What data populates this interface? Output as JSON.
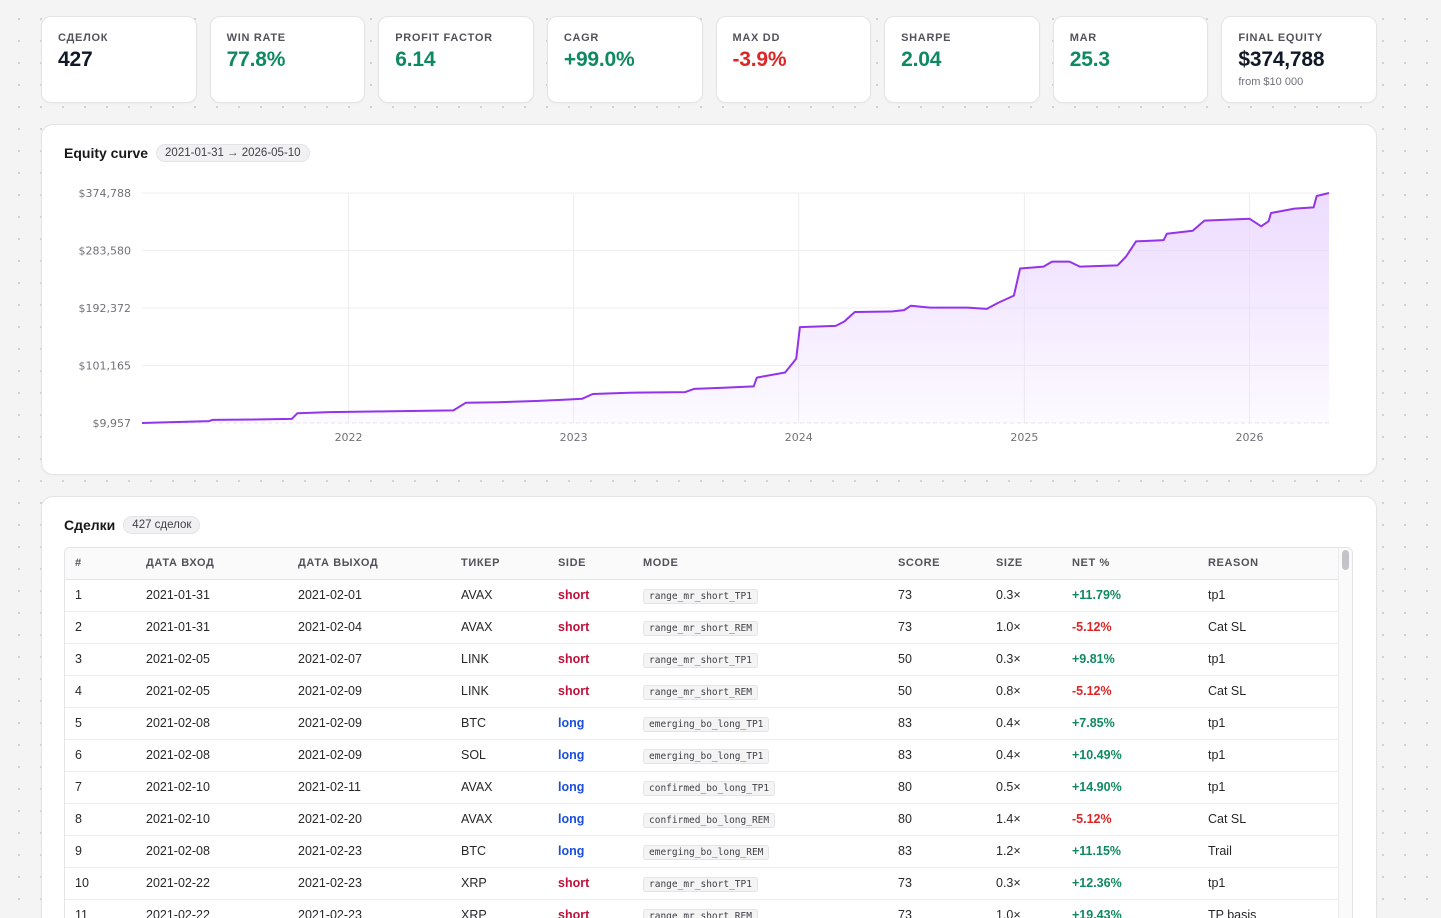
{
  "stats": [
    {
      "label": "СДЕЛОК",
      "value": "427",
      "tone": "dark",
      "sub": ""
    },
    {
      "label": "WIN RATE",
      "value": "77.8%",
      "tone": "green",
      "sub": ""
    },
    {
      "label": "PROFIT FACTOR",
      "value": "6.14",
      "tone": "green",
      "sub": ""
    },
    {
      "label": "CAGR",
      "value": "+99.0%",
      "tone": "green",
      "sub": ""
    },
    {
      "label": "MAX DD",
      "value": "-3.9%",
      "tone": "red",
      "sub": ""
    },
    {
      "label": "SHARPE",
      "value": "2.04",
      "tone": "green",
      "sub": ""
    },
    {
      "label": "MAR",
      "value": "25.3",
      "tone": "green",
      "sub": ""
    },
    {
      "label": "FINAL EQUITY",
      "value": "$374,788",
      "tone": "dark",
      "sub": "from $10 000"
    }
  ],
  "equity": {
    "title": "Equity curve",
    "range_badge": "2021-01-31 → 2026-05-10"
  },
  "chart_data": {
    "type": "area",
    "title": "Equity curve",
    "x_start": "2021-01-31",
    "x_end": "2026-05-10",
    "x_ticks": [
      "2022",
      "2023",
      "2024",
      "2025",
      "2026"
    ],
    "y_ticks": [
      "$9,957",
      "$101,165",
      "$192,372",
      "$283,580",
      "$374,788"
    ],
    "ylim": [
      9957,
      374788
    ],
    "grid": true,
    "color": "#9333ea",
    "fill": "#e9d5ff",
    "series": [
      {
        "points": [
          [
            "2021-01-31",
            9957
          ],
          [
            "2021-03-15",
            11200
          ],
          [
            "2021-05-20",
            13000
          ],
          [
            "2021-05-25",
            14800
          ],
          [
            "2021-08-01",
            15500
          ],
          [
            "2021-10-01",
            16500
          ],
          [
            "2021-10-10",
            25500
          ],
          [
            "2021-12-01",
            27200
          ],
          [
            "2022-03-01",
            28400
          ],
          [
            "2022-06-20",
            30000
          ],
          [
            "2022-07-10",
            42000
          ],
          [
            "2022-09-01",
            43000
          ],
          [
            "2022-11-01",
            44800
          ],
          [
            "2022-12-20",
            47000
          ],
          [
            "2023-01-15",
            48500
          ],
          [
            "2023-02-01",
            56000
          ],
          [
            "2023-04-01",
            58000
          ],
          [
            "2023-07-01",
            59000
          ],
          [
            "2023-07-15",
            64000
          ],
          [
            "2023-09-01",
            66000
          ],
          [
            "2023-10-20",
            68000
          ],
          [
            "2023-10-25",
            82000
          ],
          [
            "2023-12-10",
            90000
          ],
          [
            "2023-12-28",
            112000
          ],
          [
            "2024-01-03",
            162000
          ],
          [
            "2024-03-01",
            164000
          ],
          [
            "2024-03-15",
            171000
          ],
          [
            "2024-04-01",
            186000
          ],
          [
            "2024-06-01",
            187000
          ],
          [
            "2024-06-20",
            189000
          ],
          [
            "2024-07-01",
            196000
          ],
          [
            "2024-08-01",
            193000
          ],
          [
            "2024-10-01",
            193000
          ],
          [
            "2024-11-01",
            191000
          ],
          [
            "2024-11-20",
            201000
          ],
          [
            "2024-12-15",
            212000
          ],
          [
            "2024-12-25",
            255000
          ],
          [
            "2025-02-01",
            258000
          ],
          [
            "2025-02-15",
            266000
          ],
          [
            "2025-03-15",
            266000
          ],
          [
            "2025-04-01",
            258000
          ],
          [
            "2025-06-01",
            260000
          ],
          [
            "2025-06-15",
            274000
          ],
          [
            "2025-07-01",
            298000
          ],
          [
            "2025-08-15",
            300000
          ],
          [
            "2025-08-20",
            310000
          ],
          [
            "2025-10-01",
            315000
          ],
          [
            "2025-10-20",
            331000
          ],
          [
            "2026-01-01",
            334000
          ],
          [
            "2026-01-20",
            322000
          ],
          [
            "2026-02-01",
            330000
          ],
          [
            "2026-02-05",
            343000
          ],
          [
            "2026-03-15",
            350000
          ],
          [
            "2026-04-15",
            352000
          ],
          [
            "2026-04-20",
            370000
          ],
          [
            "2026-05-10",
            374788
          ]
        ]
      }
    ]
  },
  "trades": {
    "title": "Сделки",
    "count_badge": "427 сделок",
    "columns": [
      "#",
      "ДАТА ВХОД",
      "ДАТА ВЫХОД",
      "ТИКЕР",
      "SIDE",
      "MODE",
      "SCORE",
      "SIZE",
      "NET %",
      "REASON"
    ],
    "rows": [
      [
        "1",
        "2021-01-31",
        "2021-02-01",
        "AVAX",
        "short",
        "range_mr_short_TP1",
        "73",
        "0.3×",
        "+11.79%",
        "tp1"
      ],
      [
        "2",
        "2021-01-31",
        "2021-02-04",
        "AVAX",
        "short",
        "range_mr_short_REM",
        "73",
        "1.0×",
        "-5.12%",
        "Cat SL"
      ],
      [
        "3",
        "2021-02-05",
        "2021-02-07",
        "LINK",
        "short",
        "range_mr_short_TP1",
        "50",
        "0.3×",
        "+9.81%",
        "tp1"
      ],
      [
        "4",
        "2021-02-05",
        "2021-02-09",
        "LINK",
        "short",
        "range_mr_short_REM",
        "50",
        "0.8×",
        "-5.12%",
        "Cat SL"
      ],
      [
        "5",
        "2021-02-08",
        "2021-02-09",
        "BTC",
        "long",
        "emerging_bo_long_TP1",
        "83",
        "0.4×",
        "+7.85%",
        "tp1"
      ],
      [
        "6",
        "2021-02-08",
        "2021-02-09",
        "SOL",
        "long",
        "emerging_bo_long_TP1",
        "83",
        "0.4×",
        "+10.49%",
        "tp1"
      ],
      [
        "7",
        "2021-02-10",
        "2021-02-11",
        "AVAX",
        "long",
        "confirmed_bo_long_TP1",
        "80",
        "0.5×",
        "+14.90%",
        "tp1"
      ],
      [
        "8",
        "2021-02-10",
        "2021-02-20",
        "AVAX",
        "long",
        "confirmed_bo_long_REM",
        "80",
        "1.4×",
        "-5.12%",
        "Cat SL"
      ],
      [
        "9",
        "2021-02-08",
        "2021-02-23",
        "BTC",
        "long",
        "emerging_bo_long_REM",
        "83",
        "1.2×",
        "+11.15%",
        "Trail"
      ],
      [
        "10",
        "2021-02-22",
        "2021-02-23",
        "XRP",
        "short",
        "range_mr_short_TP1",
        "73",
        "0.3×",
        "+12.36%",
        "tp1"
      ],
      [
        "11",
        "2021-02-22",
        "2021-02-23",
        "XRP",
        "short",
        "range_mr_short_REM",
        "73",
        "1.0×",
        "+19.43%",
        "TP basis"
      ]
    ]
  }
}
